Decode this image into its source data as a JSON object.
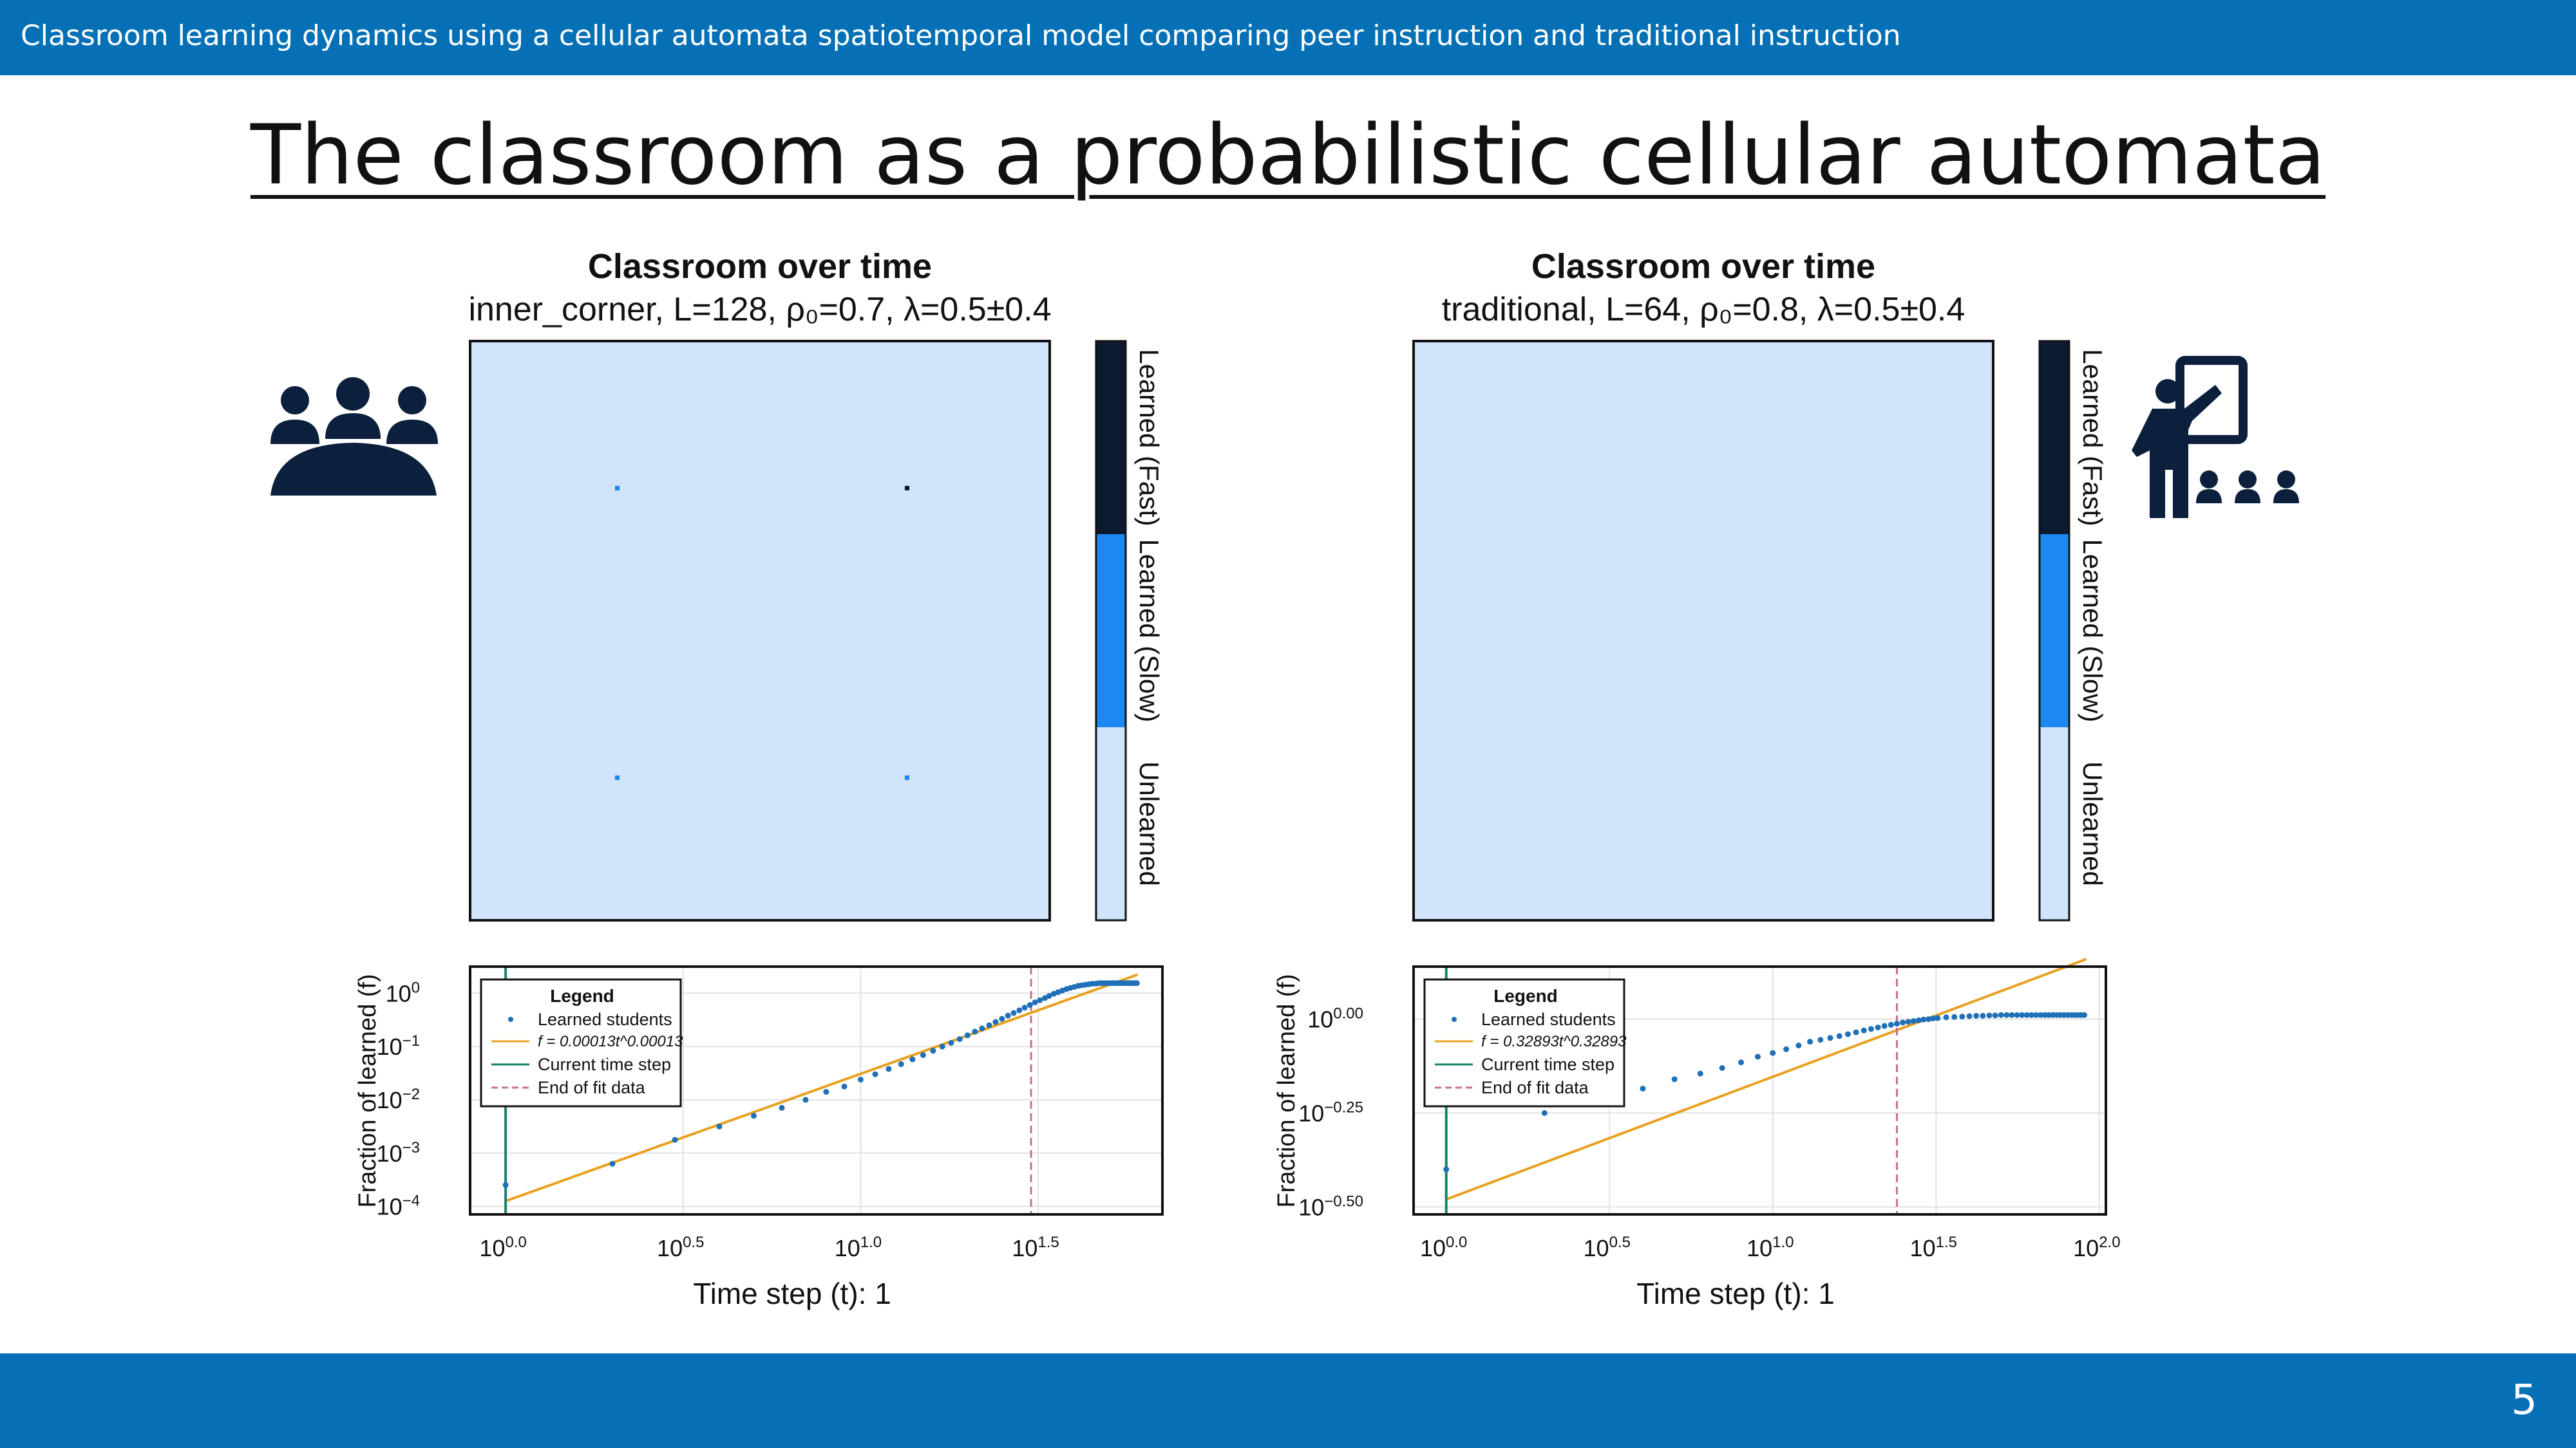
{
  "header": {
    "subtitle": "Classroom learning dynamics using a cellular automata spatiotemporal model comparing peer instruction and traditional instruction"
  },
  "slide": {
    "title": "The classroom as a probabilistic cellular automata",
    "page_number": "5"
  },
  "colors": {
    "bar": "#0570b5",
    "unlearned": "#d0e4fb",
    "learned_slow": "#1e88f2",
    "learned_fast": "#0c1a30",
    "icon": "#0c1f3c",
    "fit_line": "#e8a020",
    "current_step": "#15806b",
    "fit_end": "#c8708a",
    "points": "#1f70b8"
  },
  "icons": {
    "left": "group-meeting-icon",
    "right": "teacher-presentation-icon"
  },
  "panels": [
    {
      "grid_title": "Classroom over time",
      "grid_subtitle": "inner_corner, L=128, ρ₀=0.7, λ=0.5±0.4",
      "colorbar_labels": [
        "Learned (Fast)",
        "Learned (Slow)",
        "Unlearned"
      ],
      "legend": {
        "title": "Legend",
        "items": [
          "Learned students",
          "f = 0.00013t^0.00013",
          "Current time step",
          "End of fit data"
        ]
      },
      "xlabel": "Time step (t): 1",
      "ylabel": "Fraction of learned (f)"
    },
    {
      "grid_title": "Classroom over time",
      "grid_subtitle": "traditional, L=64, ρ₀=0.8, λ=0.5±0.4",
      "colorbar_labels": [
        "Learned (Fast)",
        "Learned (Slow)",
        "Unlearned"
      ],
      "legend": {
        "title": "Legend",
        "items": [
          "Learned students",
          "f = 0.32893t^0.32893",
          "Current time step",
          "End of fit data"
        ]
      },
      "xlabel": "Time step (t): 1",
      "ylabel": "Fraction of learned (f)"
    }
  ],
  "chart_data": [
    {
      "type": "heatmap",
      "title": "Classroom over time",
      "subtitle": "inner_corner, L=128, ρ₀=0.7, λ=0.5±0.4",
      "grid_size": 128,
      "background_state": "Unlearned",
      "seeds": [
        {
          "row": 32,
          "col": 32,
          "state": "Learned (Slow)"
        },
        {
          "row": 32,
          "col": 96,
          "state": "Learned (Fast)"
        },
        {
          "row": 96,
          "col": 32,
          "state": "Learned (Slow)"
        },
        {
          "row": 96,
          "col": 96,
          "state": "Learned (Slow)"
        }
      ],
      "colorbar": [
        "Learned (Fast)",
        "Learned (Slow)",
        "Unlearned"
      ]
    },
    {
      "type": "heatmap",
      "title": "Classroom over time",
      "subtitle": "traditional, L=64, ρ₀=0.8, λ=0.5±0.4",
      "grid_size": 64,
      "background_state": "Unlearned",
      "seeds": [],
      "colorbar": [
        "Learned (Fast)",
        "Learned (Slow)",
        "Unlearned"
      ]
    },
    {
      "type": "scatter",
      "xscale": "log10",
      "yscale": "log10",
      "xlim": [
        -0.1,
        1.85
      ],
      "ylim": [
        -4.15,
        0.5
      ],
      "xticks": [
        0,
        0.5,
        1.0,
        1.5
      ],
      "xtick_labels": [
        "0.0",
        "0.5",
        "1.0",
        "1.5"
      ],
      "yticks": [
        0,
        -1,
        -2,
        -3,
        -4
      ],
      "ytick_labels": [
        "0",
        "−1",
        "−2",
        "−3",
        "−4"
      ],
      "grid": true,
      "legend_position": "top-left",
      "points_log": [
        [
          0.0,
          -3.6
        ],
        [
          0.301,
          -3.2
        ],
        [
          0.477,
          -2.75
        ],
        [
          0.602,
          -2.5
        ],
        [
          0.699,
          -2.3
        ],
        [
          0.778,
          -2.15
        ],
        [
          0.845,
          -2.0
        ],
        [
          0.903,
          -1.85
        ],
        [
          0.954,
          -1.75
        ],
        [
          1.0,
          -1.62
        ],
        [
          1.041,
          -1.52
        ],
        [
          1.079,
          -1.42
        ],
        [
          1.114,
          -1.33
        ],
        [
          1.146,
          -1.24
        ],
        [
          1.176,
          -1.16
        ],
        [
          1.204,
          -1.08
        ],
        [
          1.23,
          -1.0
        ],
        [
          1.255,
          -0.93
        ],
        [
          1.279,
          -0.86
        ],
        [
          1.301,
          -0.79
        ],
        [
          1.322,
          -0.72
        ],
        [
          1.342,
          -0.66
        ],
        [
          1.362,
          -0.6
        ],
        [
          1.38,
          -0.54
        ],
        [
          1.398,
          -0.48
        ],
        [
          1.415,
          -0.42
        ],
        [
          1.431,
          -0.37
        ],
        [
          1.447,
          -0.32
        ],
        [
          1.462,
          -0.27
        ],
        [
          1.477,
          -0.22
        ],
        [
          1.491,
          -0.17
        ],
        [
          1.505,
          -0.13
        ],
        [
          1.519,
          -0.09
        ],
        [
          1.531,
          -0.05
        ],
        [
          1.544,
          -0.01
        ],
        [
          1.556,
          0.02
        ],
        [
          1.568,
          0.05
        ],
        [
          1.58,
          0.08
        ],
        [
          1.591,
          0.1
        ],
        [
          1.602,
          0.12
        ],
        [
          1.613,
          0.14
        ],
        [
          1.623,
          0.15
        ],
        [
          1.633,
          0.16
        ],
        [
          1.643,
          0.17
        ],
        [
          1.653,
          0.18
        ],
        [
          1.663,
          0.18
        ],
        [
          1.672,
          0.19
        ],
        [
          1.681,
          0.19
        ],
        [
          1.69,
          0.19
        ],
        [
          1.699,
          0.19
        ],
        [
          1.708,
          0.19
        ],
        [
          1.716,
          0.19
        ],
        [
          1.724,
          0.19
        ],
        [
          1.732,
          0.19
        ],
        [
          1.74,
          0.19
        ],
        [
          1.748,
          0.19
        ],
        [
          1.756,
          0.19
        ],
        [
          1.763,
          0.19
        ],
        [
          1.771,
          0.19
        ],
        [
          1.778,
          0.19
        ]
      ],
      "fit_line_log": [
        [
          0.0,
          -3.9
        ],
        [
          1.78,
          0.35
        ]
      ],
      "current_step_x_log": 0.0,
      "fit_end_x_log": 1.48
    },
    {
      "type": "scatter",
      "xscale": "log10",
      "yscale": "log10",
      "xlim": [
        -0.1,
        2.02
      ],
      "ylim": [
        -0.52,
        0.14
      ],
      "xticks": [
        0,
        0.5,
        1.0,
        1.5,
        2.0
      ],
      "xtick_labels": [
        "0.0",
        "0.5",
        "1.0",
        "1.5",
        "2.0"
      ],
      "yticks": [
        0.0,
        -0.25,
        -0.5
      ],
      "ytick_labels": [
        "0.00",
        "−0.25",
        "−0.50"
      ],
      "grid": true,
      "legend_position": "top-left",
      "points_log": [
        [
          0.0,
          -0.4
        ],
        [
          0.301,
          -0.25
        ],
        [
          0.477,
          -0.22
        ],
        [
          0.602,
          -0.185
        ],
        [
          0.699,
          -0.16
        ],
        [
          0.778,
          -0.145
        ],
        [
          0.845,
          -0.13
        ],
        [
          0.903,
          -0.115
        ],
        [
          0.954,
          -0.1
        ],
        [
          1.0,
          -0.09
        ],
        [
          1.041,
          -0.08
        ],
        [
          1.079,
          -0.07
        ],
        [
          1.114,
          -0.06
        ],
        [
          1.146,
          -0.055
        ],
        [
          1.176,
          -0.05
        ],
        [
          1.204,
          -0.045
        ],
        [
          1.23,
          -0.04
        ],
        [
          1.255,
          -0.035
        ],
        [
          1.279,
          -0.03
        ],
        [
          1.301,
          -0.026
        ],
        [
          1.322,
          -0.022
        ],
        [
          1.342,
          -0.018
        ],
        [
          1.362,
          -0.015
        ],
        [
          1.38,
          -0.012
        ],
        [
          1.398,
          -0.009
        ],
        [
          1.415,
          -0.007
        ],
        [
          1.431,
          -0.005
        ],
        [
          1.447,
          -0.003
        ],
        [
          1.462,
          -0.001
        ],
        [
          1.477,
          0.0
        ],
        [
          1.491,
          0.002
        ],
        [
          1.505,
          0.003
        ],
        [
          1.531,
          0.005
        ],
        [
          1.556,
          0.006
        ],
        [
          1.58,
          0.007
        ],
        [
          1.602,
          0.008
        ],
        [
          1.623,
          0.009
        ],
        [
          1.643,
          0.009
        ],
        [
          1.663,
          0.01
        ],
        [
          1.681,
          0.01
        ],
        [
          1.699,
          0.011
        ],
        [
          1.716,
          0.011
        ],
        [
          1.732,
          0.011
        ],
        [
          1.748,
          0.011
        ],
        [
          1.763,
          0.011
        ],
        [
          1.778,
          0.011
        ],
        [
          1.792,
          0.011
        ],
        [
          1.806,
          0.011
        ],
        [
          1.82,
          0.011
        ],
        [
          1.833,
          0.011
        ],
        [
          1.845,
          0.011
        ],
        [
          1.857,
          0.011
        ],
        [
          1.869,
          0.011
        ],
        [
          1.881,
          0.011
        ],
        [
          1.892,
          0.011
        ],
        [
          1.903,
          0.011
        ],
        [
          1.914,
          0.011
        ],
        [
          1.924,
          0.011
        ],
        [
          1.934,
          0.011
        ],
        [
          1.944,
          0.011
        ],
        [
          1.954,
          0.011
        ]
      ],
      "fit_line_log": [
        [
          0.0,
          -0.48
        ],
        [
          1.96,
          0.16
        ]
      ],
      "current_step_x_log": 0.0,
      "fit_end_x_log": 1.38
    }
  ]
}
